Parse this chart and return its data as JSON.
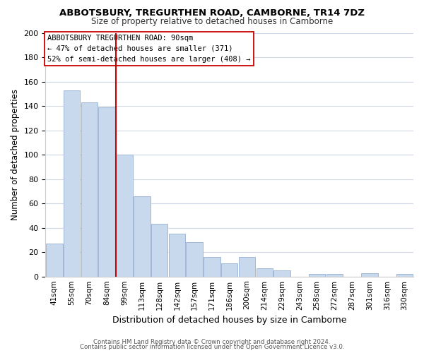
{
  "title": "ABBOTSBURY, TREGURTHEN ROAD, CAMBORNE, TR14 7DZ",
  "subtitle": "Size of property relative to detached houses in Camborne",
  "xlabel": "Distribution of detached houses by size in Camborne",
  "ylabel": "Number of detached properties",
  "footer_lines": [
    "Contains HM Land Registry data © Crown copyright and database right 2024.",
    "Contains public sector information licensed under the Open Government Licence v3.0."
  ],
  "bar_labels": [
    "41sqm",
    "55sqm",
    "70sqm",
    "84sqm",
    "99sqm",
    "113sqm",
    "128sqm",
    "142sqm",
    "157sqm",
    "171sqm",
    "186sqm",
    "200sqm",
    "214sqm",
    "229sqm",
    "243sqm",
    "258sqm",
    "272sqm",
    "287sqm",
    "301sqm",
    "316sqm",
    "330sqm"
  ],
  "bar_values": [
    27,
    153,
    143,
    139,
    100,
    66,
    43,
    35,
    28,
    16,
    11,
    16,
    7,
    5,
    0,
    2,
    2,
    0,
    3,
    0,
    2
  ],
  "bar_color": "#c9d9ed",
  "bar_edge_color": "#a0b8d8",
  "vline_color": "#cc0000",
  "vline_pos": 3.5,
  "annotation_line1": "ABBOTSBURY TREGURTHEN ROAD: 90sqm",
  "annotation_line2": "← 47% of detached houses are smaller (371)",
  "annotation_line3": "52% of semi-detached houses are larger (408) →",
  "ylim": [
    0,
    200
  ],
  "yticks": [
    0,
    20,
    40,
    60,
    80,
    100,
    120,
    140,
    160,
    180,
    200
  ],
  "background_color": "#ffffff",
  "grid_color": "#d0d8e8"
}
